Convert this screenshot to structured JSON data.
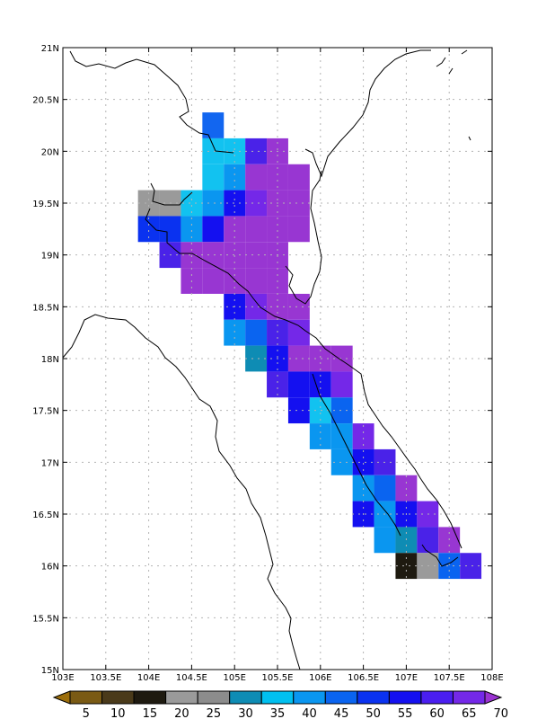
{
  "map": {
    "lon_range": [
      103,
      108
    ],
    "lat_range": [
      15,
      21
    ],
    "grid_step_deg": 0.25,
    "gridlines": true,
    "x_ticks": [
      103,
      103.5,
      104,
      104.5,
      105,
      105.5,
      106,
      106.5,
      107,
      107.5,
      108
    ],
    "x_tick_labels": [
      "103E",
      "103.5E",
      "104E",
      "104.5E",
      "105E",
      "105.5E",
      "106E",
      "106.5E",
      "107E",
      "107.5E",
      "108E"
    ],
    "y_ticks": [
      15,
      15.5,
      16,
      16.5,
      17,
      17.5,
      18,
      18.5,
      19,
      19.5,
      20,
      20.5,
      21
    ],
    "y_tick_labels": [
      "15N",
      "15.5N",
      "16N",
      "16.5N",
      "17N",
      "17.5N",
      "18N",
      "18.5N",
      "19N",
      "19.5N",
      "20N",
      "20.5N",
      "21N"
    ]
  },
  "colorbar": {
    "labels": [
      "5",
      "10",
      "15",
      "20",
      "25",
      "30",
      "35",
      "40",
      "45",
      "50",
      "55",
      "60",
      "65",
      "70"
    ],
    "colors": [
      "#9c6e0c",
      "#7a5a14",
      "#4a3a1a",
      "#1e1a10",
      "#9a9a9a",
      "#8c8c8c",
      "#0e8cb4",
      "#00c0f0",
      "#0a96f0",
      "#0a64f0",
      "#0a32f0",
      "#1410f0",
      "#4a1ef0",
      "#7428e8",
      "#9a32d2"
    ],
    "end_arrows": true
  },
  "chart_data": {
    "type": "heatmap",
    "x_axis": "longitude (E)",
    "y_axis": "latitude (N)",
    "cell_size_deg": 0.25,
    "cells": [
      {
        "lon": 104.75,
        "lat": 20.25,
        "c": "#1266f0"
      },
      {
        "lon": 104.75,
        "lat": 20.0,
        "c": "#12c2f0"
      },
      {
        "lon": 105.0,
        "lat": 20.0,
        "c": "#12c2f0"
      },
      {
        "lon": 105.25,
        "lat": 20.0,
        "c": "#4a22e8"
      },
      {
        "lon": 105.5,
        "lat": 20.0,
        "c": "#9836d2"
      },
      {
        "lon": 104.75,
        "lat": 19.75,
        "c": "#12c2f0"
      },
      {
        "lon": 105.0,
        "lat": 19.75,
        "c": "#0a96f0"
      },
      {
        "lon": 105.25,
        "lat": 19.75,
        "c": "#9836d2"
      },
      {
        "lon": 105.5,
        "lat": 19.75,
        "c": "#9836d2"
      },
      {
        "lon": 105.75,
        "lat": 19.75,
        "c": "#9836d2"
      },
      {
        "lon": 104.0,
        "lat": 19.5,
        "c": "#9a9a9a"
      },
      {
        "lon": 104.25,
        "lat": 19.5,
        "c": "#9a9a9a"
      },
      {
        "lon": 104.5,
        "lat": 19.5,
        "c": "#12c2f0"
      },
      {
        "lon": 104.75,
        "lat": 19.5,
        "c": "#0a96f0"
      },
      {
        "lon": 105.0,
        "lat": 19.5,
        "c": "#1410f0"
      },
      {
        "lon": 105.25,
        "lat": 19.5,
        "c": "#7428e8"
      },
      {
        "lon": 105.5,
        "lat": 19.5,
        "c": "#9836d2"
      },
      {
        "lon": 105.75,
        "lat": 19.5,
        "c": "#9836d2"
      },
      {
        "lon": 104.0,
        "lat": 19.25,
        "c": "#0a32f0"
      },
      {
        "lon": 104.25,
        "lat": 19.25,
        "c": "#0a32f0"
      },
      {
        "lon": 104.5,
        "lat": 19.25,
        "c": "#0a96f0"
      },
      {
        "lon": 104.75,
        "lat": 19.25,
        "c": "#1410f0"
      },
      {
        "lon": 105.0,
        "lat": 19.25,
        "c": "#9836d2"
      },
      {
        "lon": 105.25,
        "lat": 19.25,
        "c": "#9836d2"
      },
      {
        "lon": 105.5,
        "lat": 19.25,
        "c": "#9836d2"
      },
      {
        "lon": 105.75,
        "lat": 19.25,
        "c": "#9836d2"
      },
      {
        "lon": 104.25,
        "lat": 19.0,
        "c": "#4a22e8"
      },
      {
        "lon": 104.5,
        "lat": 19.0,
        "c": "#9836d2"
      },
      {
        "lon": 104.75,
        "lat": 19.0,
        "c": "#9836d2"
      },
      {
        "lon": 105.0,
        "lat": 19.0,
        "c": "#9836d2"
      },
      {
        "lon": 105.25,
        "lat": 19.0,
        "c": "#9836d2"
      },
      {
        "lon": 105.5,
        "lat": 19.0,
        "c": "#9836d2"
      },
      {
        "lon": 104.5,
        "lat": 18.75,
        "c": "#9836d2"
      },
      {
        "lon": 104.75,
        "lat": 18.75,
        "c": "#9836d2"
      },
      {
        "lon": 105.0,
        "lat": 18.75,
        "c": "#9836d2"
      },
      {
        "lon": 105.25,
        "lat": 18.75,
        "c": "#9836d2"
      },
      {
        "lon": 105.5,
        "lat": 18.75,
        "c": "#9836d2"
      },
      {
        "lon": 105.0,
        "lat": 18.5,
        "c": "#1410f0"
      },
      {
        "lon": 105.25,
        "lat": 18.5,
        "c": "#7428e8"
      },
      {
        "lon": 105.5,
        "lat": 18.5,
        "c": "#9836d2"
      },
      {
        "lon": 105.75,
        "lat": 18.5,
        "c": "#9836d2"
      },
      {
        "lon": 105.0,
        "lat": 18.25,
        "c": "#0a96f0"
      },
      {
        "lon": 105.25,
        "lat": 18.25,
        "c": "#0a64f0"
      },
      {
        "lon": 105.5,
        "lat": 18.25,
        "c": "#4a22e8"
      },
      {
        "lon": 105.75,
        "lat": 18.25,
        "c": "#7428e8"
      },
      {
        "lon": 105.25,
        "lat": 18.0,
        "c": "#0e8cb4"
      },
      {
        "lon": 105.5,
        "lat": 18.0,
        "c": "#1410f0"
      },
      {
        "lon": 105.75,
        "lat": 18.0,
        "c": "#9836d2"
      },
      {
        "lon": 106.0,
        "lat": 18.0,
        "c": "#9836d2"
      },
      {
        "lon": 106.25,
        "lat": 18.0,
        "c": "#9836d2"
      },
      {
        "lon": 105.5,
        "lat": 17.75,
        "c": "#4a22e8"
      },
      {
        "lon": 105.75,
        "lat": 17.75,
        "c": "#1410f0"
      },
      {
        "lon": 106.0,
        "lat": 17.75,
        "c": "#1410f0"
      },
      {
        "lon": 106.25,
        "lat": 17.75,
        "c": "#7428e8"
      },
      {
        "lon": 105.75,
        "lat": 17.5,
        "c": "#1410f0"
      },
      {
        "lon": 106.0,
        "lat": 17.5,
        "c": "#12c2f0"
      },
      {
        "lon": 106.25,
        "lat": 17.5,
        "c": "#0a64f0"
      },
      {
        "lon": 106.0,
        "lat": 17.25,
        "c": "#0a96f0"
      },
      {
        "lon": 106.25,
        "lat": 17.25,
        "c": "#0a96f0"
      },
      {
        "lon": 106.5,
        "lat": 17.25,
        "c": "#7428e8"
      },
      {
        "lon": 106.25,
        "lat": 17.0,
        "c": "#0a96f0"
      },
      {
        "lon": 106.5,
        "lat": 17.0,
        "c": "#1410f0"
      },
      {
        "lon": 106.75,
        "lat": 17.0,
        "c": "#4a22e8"
      },
      {
        "lon": 106.5,
        "lat": 16.75,
        "c": "#0a96f0"
      },
      {
        "lon": 106.75,
        "lat": 16.75,
        "c": "#0a64f0"
      },
      {
        "lon": 107.0,
        "lat": 16.75,
        "c": "#9836d2"
      },
      {
        "lon": 106.5,
        "lat": 16.5,
        "c": "#1410f0"
      },
      {
        "lon": 106.75,
        "lat": 16.5,
        "c": "#0a96f0"
      },
      {
        "lon": 107.0,
        "lat": 16.5,
        "c": "#1410f0"
      },
      {
        "lon": 107.25,
        "lat": 16.5,
        "c": "#7428e8"
      },
      {
        "lon": 106.75,
        "lat": 16.25,
        "c": "#0a96f0"
      },
      {
        "lon": 107.0,
        "lat": 16.25,
        "c": "#0e8cb4"
      },
      {
        "lon": 107.25,
        "lat": 16.25,
        "c": "#4a22e8"
      },
      {
        "lon": 107.5,
        "lat": 16.25,
        "c": "#9836d2"
      },
      {
        "lon": 107.0,
        "lat": 16.0,
        "c": "#1e1a10"
      },
      {
        "lon": 107.25,
        "lat": 16.0,
        "c": "#9a9a9a"
      },
      {
        "lon": 107.5,
        "lat": 16.0,
        "c": "#0a64f0"
      },
      {
        "lon": 107.75,
        "lat": 16.0,
        "c": "#4a22e8"
      }
    ]
  }
}
